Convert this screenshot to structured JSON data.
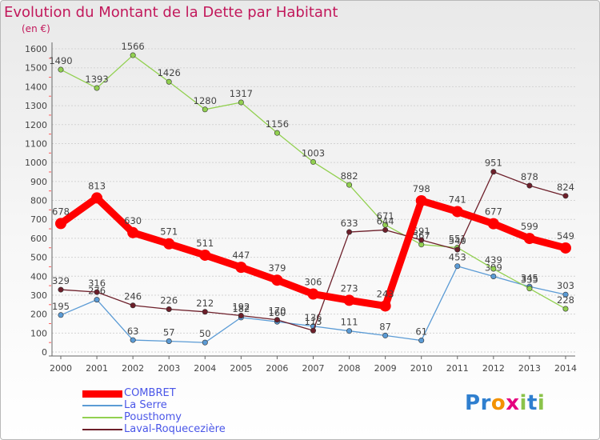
{
  "title": "Evolution du Montant de la Dette par Habitant",
  "unit": "(en €)",
  "logo": "Proxiti",
  "chart_data": {
    "type": "line",
    "title": "Evolution du Montant de la Dette par Habitant",
    "ylabel": "(en €)",
    "xlabel": "",
    "ylim": [
      0,
      1600
    ],
    "yticks": [
      0,
      100,
      200,
      300,
      400,
      500,
      600,
      700,
      800,
      900,
      1000,
      1100,
      1200,
      1300,
      1400,
      1500,
      1600
    ],
    "grid": true,
    "legend_position": "bottom-left",
    "categories": [
      "2000",
      "2001",
      "2002",
      "2003",
      "2004",
      "2005",
      "2006",
      "2007",
      "2008",
      "2009",
      "2010",
      "2011",
      "2012",
      "2013",
      "2014"
    ],
    "series": [
      {
        "name": "COMBRET",
        "color": "#ff0000",
        "values": [
          678,
          813,
          630,
          571,
          511,
          447,
          379,
          306,
          273,
          243,
          798,
          741,
          677,
          599,
          549
        ]
      },
      {
        "name": "La Serre",
        "color": "#5b9bd5",
        "values": [
          195,
          276,
          63,
          57,
          50,
          182,
          160,
          136,
          111,
          87,
          61,
          453,
          399,
          345,
          303
        ]
      },
      {
        "name": "Pousthomy",
        "color": "#92d050",
        "values": [
          1490,
          1393,
          1566,
          1426,
          1280,
          1317,
          1156,
          1003,
          882,
          671,
          567,
          551,
          439,
          335,
          228
        ]
      },
      {
        "name": "Laval-Roquecezière",
        "color": "#6d1f2a",
        "values": [
          329,
          316,
          246,
          226,
          212,
          192,
          170,
          113,
          633,
          644,
          591,
          540,
          951,
          878,
          824
        ]
      }
    ]
  }
}
